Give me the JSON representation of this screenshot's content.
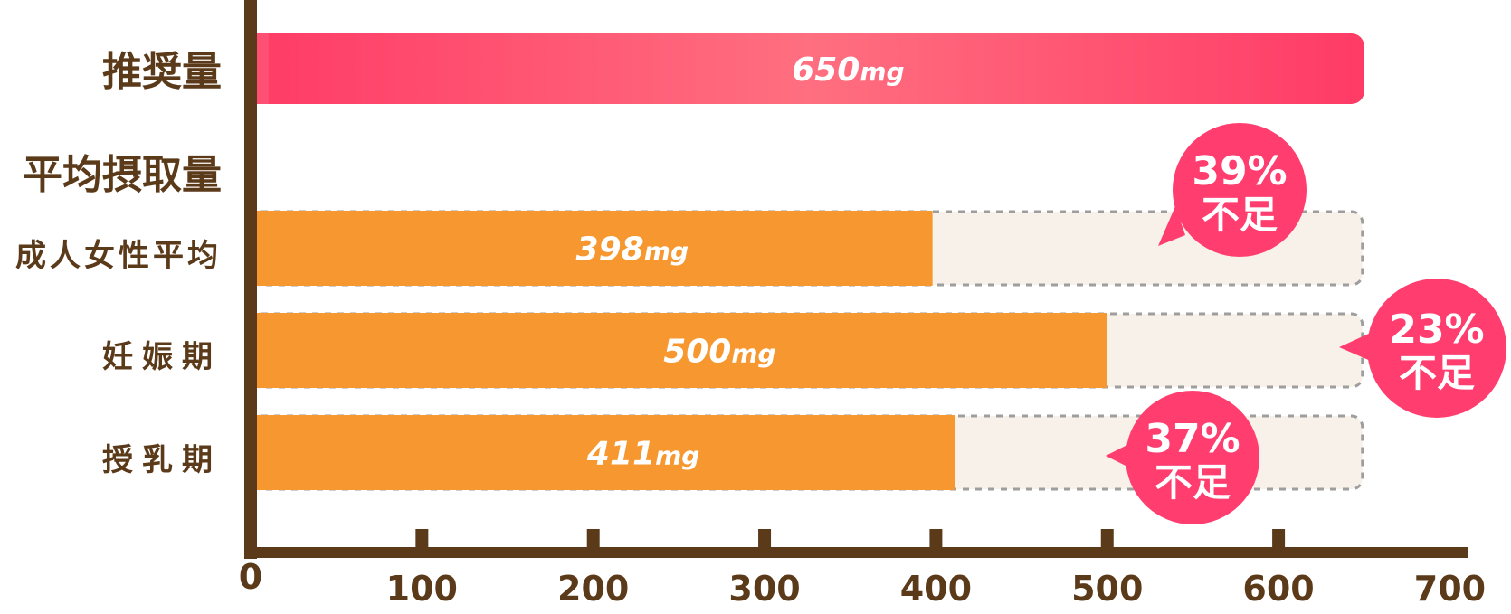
{
  "chart_data": {
    "type": "bar",
    "orientation": "horizontal",
    "xlim": [
      0,
      700
    ],
    "x_ticks": [
      "0",
      "100",
      "200",
      "300",
      "400",
      "500",
      "600",
      "700"
    ],
    "categories": [
      "推奨量",
      "成人女性平均",
      "妊娠期",
      "授乳期"
    ],
    "values": [
      650,
      398,
      500,
      411
    ],
    "value_labels": [
      "650",
      "398",
      "500",
      "411"
    ],
    "unit": "mg",
    "group_label": "平均摂取量",
    "shortfall_labels": [
      {
        "category": "成人女性平均",
        "percent": "39%",
        "text": "不足"
      },
      {
        "category": "妊娠期",
        "percent": "23%",
        "text": "不足"
      },
      {
        "category": "授乳期",
        "percent": "37%",
        "text": "不足"
      }
    ],
    "colors": {
      "recommended": "#ff4f72",
      "intake": "#f7972f",
      "shortfall_fill": "#f8f1ea",
      "shortfall_border": "#9e9e9e",
      "bubble": "#ff3d6e",
      "axis": "#5b3a1a"
    }
  }
}
